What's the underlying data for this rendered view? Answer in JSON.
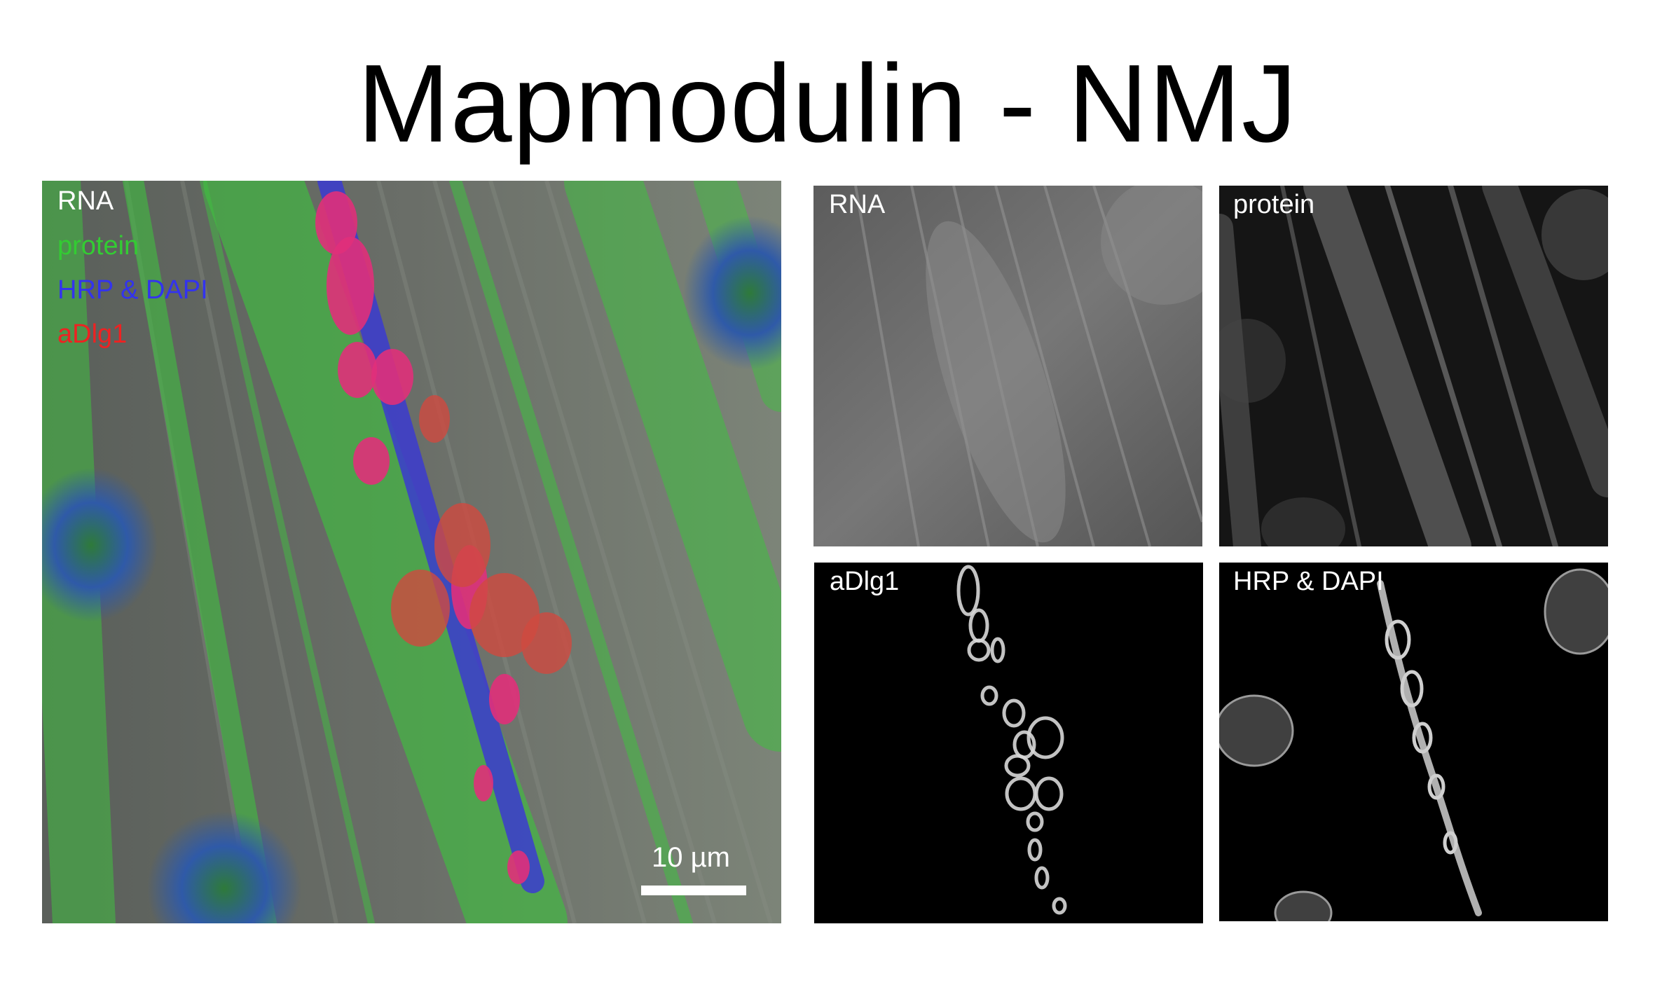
{
  "title": "Mapmodulin - NMJ",
  "merged_panel": {
    "legend": [
      {
        "label": "RNA",
        "color": "#ffffff"
      },
      {
        "label": "protein",
        "color": "#33cc33"
      },
      {
        "label": "HRP & DAPI",
        "color": "#3333ee"
      },
      {
        "label": "aDlg1",
        "color": "#ee2222"
      }
    ],
    "scale_bar_label": "10 µm"
  },
  "channel_panels": [
    {
      "label": "RNA"
    },
    {
      "label": "protein"
    },
    {
      "label": "aDlg1"
    },
    {
      "label": "HRP & DAPI"
    }
  ]
}
